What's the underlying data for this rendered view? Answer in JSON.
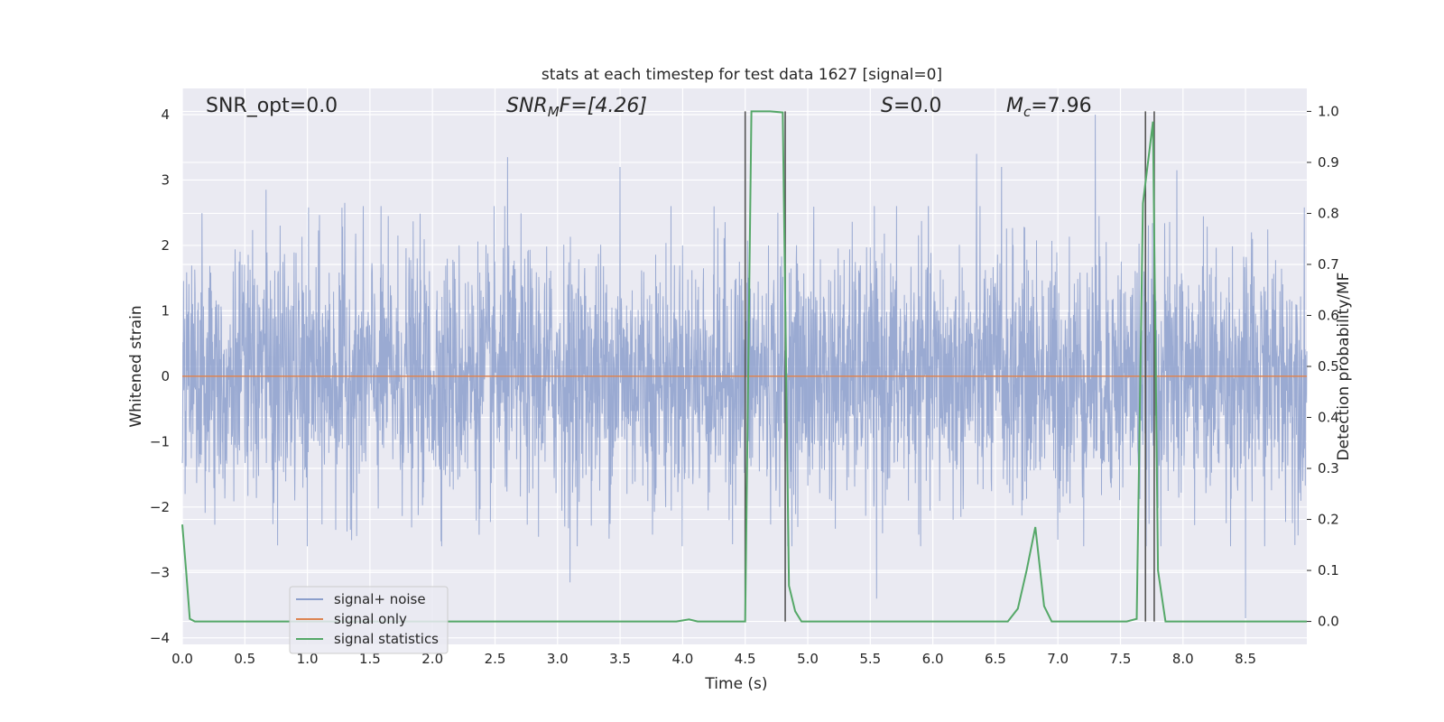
{
  "chart_data": {
    "type": "line",
    "title": "stats at each timestep for test data 1627 [signal=0]",
    "xlabel": "Time (s)",
    "ylabel": "Whitened strain",
    "y2label": "Detection probability/MF",
    "xlim": [
      0,
      8.99
    ],
    "ylim": [
      -4.1,
      4.4
    ],
    "y2lim": [
      -0.045,
      1.045
    ],
    "xticks": [
      "0.0",
      "0.5",
      "1.0",
      "1.5",
      "2.0",
      "2.5",
      "3.0",
      "3.5",
      "4.0",
      "4.5",
      "5.0",
      "5.5",
      "6.0",
      "6.5",
      "7.0",
      "7.5",
      "8.0",
      "8.5"
    ],
    "yticks": [
      "−4",
      "−3",
      "−2",
      "−1",
      "0",
      "1",
      "2",
      "3",
      "4"
    ],
    "y2ticks": [
      "0.0",
      "0.1",
      "0.2",
      "0.3",
      "0.4",
      "0.5",
      "0.6",
      "0.7",
      "0.8",
      "0.9",
      "1.0"
    ],
    "grid": true,
    "legend_position": "lower-left",
    "annotations": {
      "snr_opt": "SNR_opt=0.0",
      "snr_mf_label": "SNR",
      "snr_mf_sub": "M",
      "snr_mf_rest": "F=[4.26]",
      "s_label": "S",
      "s_rest": "=0.0",
      "mc_label": "M",
      "mc_sub": "c",
      "mc_rest": "=7.96"
    },
    "series": [
      {
        "name": "signal+ noise",
        "color": "#8c9fcc",
        "axis": "left",
        "style": "dense noise band, typical amplitude about ±1.5, peaks up to about 3.3 and down to about -3.7",
        "peaks_positive": [
          [
            0.67,
            2.85
          ],
          [
            1.3,
            2.65
          ],
          [
            2.6,
            3.35
          ],
          [
            3.5,
            3.2
          ],
          [
            6.35,
            3.4
          ],
          [
            6.55,
            3.2
          ],
          [
            7.3,
            4.0
          ],
          [
            7.95,
            3.15
          ]
        ],
        "peaks_negative": [
          [
            1.0,
            -2.6
          ],
          [
            3.1,
            -3.15
          ],
          [
            4.5,
            -3.35
          ],
          [
            5.55,
            -3.4
          ],
          [
            7.0,
            -2.5
          ],
          [
            8.5,
            -3.7
          ]
        ]
      },
      {
        "name": "signal only",
        "color": "#dd8452",
        "axis": "left",
        "x": [
          0,
          8.99
        ],
        "y": [
          0,
          0
        ]
      },
      {
        "name": "signal statistics",
        "color": "#55a868",
        "axis": "right",
        "x": [
          0.0,
          0.03,
          0.06,
          0.1,
          0.15,
          3.95,
          4.05,
          4.12,
          4.3,
          4.5,
          4.55,
          4.62,
          4.7,
          4.8,
          4.85,
          4.9,
          4.95,
          6.6,
          6.68,
          6.75,
          6.82,
          6.89,
          6.95,
          7.55,
          7.63,
          7.68,
          7.73,
          7.76,
          7.8,
          7.86,
          8.99
        ],
        "y": [
          0.19,
          0.1,
          0.005,
          0.0,
          0.0,
          0.0,
          0.004,
          0.0,
          0.0,
          0.0,
          1.0,
          1.0,
          1.0,
          0.998,
          0.07,
          0.02,
          0.0,
          0.0,
          0.025,
          0.1,
          0.185,
          0.03,
          0.0,
          0.0,
          0.005,
          0.82,
          0.92,
          0.98,
          0.1,
          0.0,
          0.0
        ]
      }
    ],
    "vertical_lines": [
      {
        "x": 4.5,
        "y1": 0.0,
        "y2": 1.0,
        "color": "#555555"
      },
      {
        "x": 4.82,
        "y1": 0.0,
        "y2": 1.0,
        "color": "#555555"
      },
      {
        "x": 7.7,
        "y1": 0.0,
        "y2": 1.0,
        "color": "#555555"
      },
      {
        "x": 7.77,
        "y1": 0.0,
        "y2": 1.0,
        "color": "#555555"
      }
    ]
  }
}
